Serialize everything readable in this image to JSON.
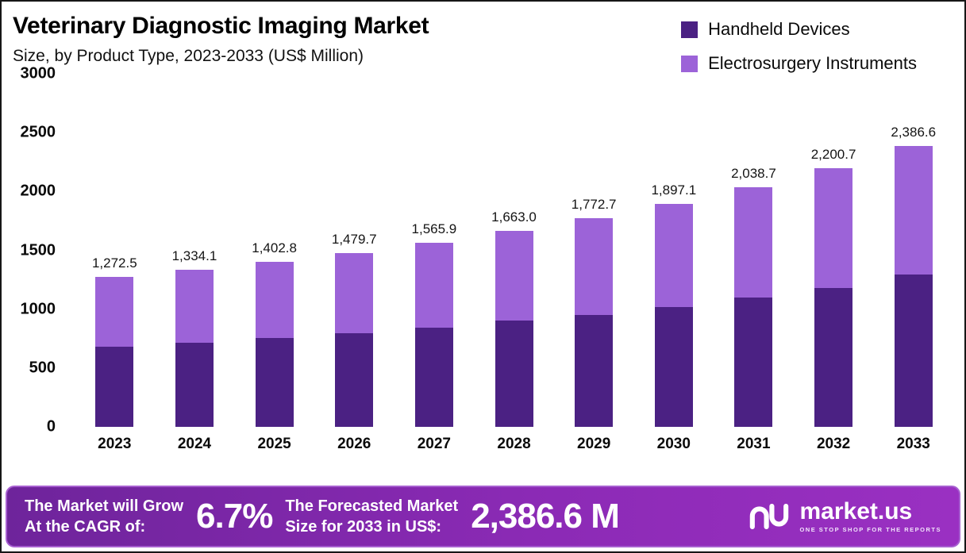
{
  "header": {
    "title": "Veterinary Diagnostic Imaging Market",
    "subtitle": "Size, by Product Type, 2023-2033 (US$ Million)"
  },
  "legend": [
    {
      "label": "Handheld Devices",
      "color": "#4b2183"
    },
    {
      "label": "Electrosurgery  Instruments",
      "color": "#9c63d8"
    }
  ],
  "chart_data": {
    "type": "bar",
    "stacked": true,
    "title": "Veterinary Diagnostic Imaging Market Size, by Product Type, 2023-2033 (US$ Million)",
    "categories": [
      "2023",
      "2024",
      "2025",
      "2026",
      "2027",
      "2028",
      "2029",
      "2030",
      "2031",
      "2032",
      "2033"
    ],
    "series": [
      {
        "name": "Handheld Devices",
        "color": "#4b2183",
        "values": [
          680,
          714,
          755,
          796,
          843,
          904,
          952,
          1020,
          1102,
          1183,
          1292
        ]
      },
      {
        "name": "Electrosurgery Instruments",
        "color": "#9c63d8",
        "values": [
          592.5,
          620.1,
          647.8,
          683.7,
          722.9,
          759.0,
          820.7,
          877.1,
          936.7,
          1017.7,
          1094.6
        ]
      }
    ],
    "totals": [
      1272.5,
      1334.1,
      1402.8,
      1479.7,
      1565.9,
      1663.0,
      1772.7,
      1897.1,
      2038.7,
      2200.7,
      2386.6
    ],
    "total_labels": [
      "1,272.5",
      "1,334.1",
      "1,402.8",
      "1,479.7",
      "1,565.9",
      "1,663.0",
      "1,772.7",
      "1,897.1",
      "2,038.7",
      "2,200.7",
      "2,386.6"
    ],
    "xlabel": "",
    "ylabel": "",
    "ylim": [
      0,
      3000
    ],
    "yticks": [
      0,
      500,
      1000,
      1500,
      2000,
      2500,
      3000
    ],
    "grid": false,
    "legend_position": "top-right"
  },
  "footer": {
    "cagr_label_line1": "The Market will Grow",
    "cagr_label_line2": "At the CAGR of:",
    "cagr_value": "6.7%",
    "forecast_label_line1": "The Forecasted Market",
    "forecast_label_line2": "Size for 2033 in US$:",
    "forecast_value": "2,386.6 M",
    "brand_name": "market.us",
    "brand_tagline": "ONE STOP SHOP FOR THE REPORTS"
  }
}
